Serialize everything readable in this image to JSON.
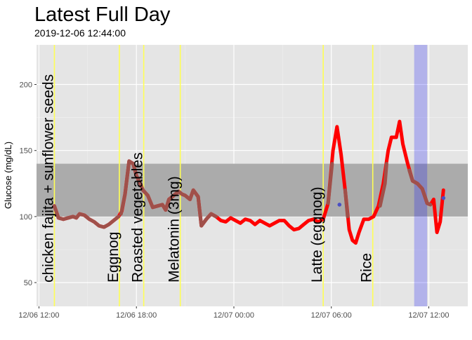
{
  "chart_data": {
    "type": "line",
    "title": "Latest Full Day",
    "subtitle": "2019-12-06 12:44:00",
    "xlabel": "",
    "ylabel": "Glucose (mg/dL)",
    "x_ticks": [
      "12/06 12:00",
      "12/06 18:00",
      "12/07 00:00",
      "12/07 06:00",
      "12/07 12:00"
    ],
    "x_tick_hours": [
      12,
      18,
      24,
      30,
      36
    ],
    "xlim_hours": [
      11.85,
      38.4
    ],
    "y_ticks": [
      50,
      100,
      150,
      200
    ],
    "ylim": [
      32,
      230
    ],
    "grid": true,
    "target_range": [
      100,
      140
    ],
    "highlight_window_hours": [
      35.1,
      35.9
    ],
    "annotations": [
      {
        "label": "chicken fajita + sunflower seeds",
        "hour": 12.95
      },
      {
        "label": "Eggnog",
        "hour": 16.95
      },
      {
        "label": "Roasted vegetables",
        "hour": 18.45
      },
      {
        "label": "Melatonin (3mg)",
        "hour": 20.7
      },
      {
        "label": "Latte (eggnog)",
        "hour": 29.5
      },
      {
        "label": "Rice",
        "hour": 32.55
      }
    ],
    "series": [
      {
        "color": "#ff0000",
        "points": [
          [
            12.95,
            108
          ],
          [
            13.2,
            99
          ],
          [
            13.5,
            98
          ],
          [
            13.8,
            99
          ],
          [
            14.1,
            100
          ],
          [
            14.3,
            99
          ],
          [
            14.5,
            102
          ],
          [
            14.8,
            101
          ],
          [
            15.1,
            98
          ],
          [
            15.4,
            96
          ],
          [
            15.7,
            93
          ],
          [
            16.0,
            92
          ],
          [
            16.3,
            94
          ],
          [
            16.6,
            97
          ],
          [
            16.9,
            100
          ],
          [
            17.1,
            104
          ],
          [
            17.3,
            117
          ],
          [
            17.55,
            142
          ],
          [
            17.8,
            140
          ],
          [
            18.0,
            131
          ],
          [
            18.2,
            126
          ],
          [
            18.4,
            120
          ],
          [
            18.7,
            116
          ],
          [
            19.0,
            107
          ],
          [
            19.3,
            108
          ],
          [
            19.6,
            109
          ],
          [
            19.8,
            105
          ],
          [
            20.0,
            113
          ],
          [
            20.3,
            116
          ],
          [
            20.6,
            119
          ],
          [
            20.8,
            117
          ],
          [
            21.0,
            116
          ],
          [
            21.3,
            113
          ],
          [
            21.5,
            120
          ],
          [
            21.8,
            115
          ],
          [
            22.0,
            93
          ],
          [
            22.3,
            98
          ],
          [
            22.6,
            102
          ],
          [
            22.9,
            100
          ],
          [
            23.2,
            97
          ],
          [
            23.5,
            96
          ],
          [
            23.8,
            99
          ],
          [
            24.1,
            97
          ],
          [
            24.4,
            95
          ],
          [
            24.7,
            98
          ],
          [
            25.0,
            97
          ],
          [
            25.3,
            94
          ],
          [
            25.6,
            97
          ],
          [
            25.9,
            95
          ],
          [
            26.2,
            93
          ],
          [
            26.5,
            95
          ],
          [
            26.8,
            97
          ],
          [
            27.1,
            97
          ],
          [
            27.4,
            93
          ],
          [
            27.7,
            90
          ],
          [
            28.0,
            91
          ],
          [
            28.3,
            94
          ],
          [
            28.6,
            97
          ],
          [
            28.9,
            98
          ],
          [
            29.2,
            96
          ],
          [
            29.5,
            98
          ],
          [
            29.8,
            110
          ],
          [
            30.1,
            150
          ],
          [
            30.35,
            168
          ],
          [
            30.6,
            147
          ],
          [
            30.85,
            120
          ],
          [
            31.1,
            90
          ],
          [
            31.3,
            82
          ],
          [
            31.5,
            80
          ],
          [
            31.7,
            88
          ],
          [
            32.0,
            98
          ],
          [
            32.3,
            98
          ],
          [
            32.6,
            100
          ],
          [
            32.9,
            108
          ],
          [
            33.2,
            125
          ],
          [
            33.5,
            150
          ],
          [
            33.7,
            160
          ],
          [
            34.0,
            160
          ],
          [
            34.2,
            172
          ],
          [
            34.4,
            155
          ],
          [
            34.7,
            140
          ],
          [
            35.0,
            127
          ],
          [
            35.3,
            125
          ],
          [
            35.6,
            121
          ],
          [
            35.9,
            110
          ],
          [
            36.1,
            109
          ],
          [
            36.3,
            113
          ],
          [
            36.5,
            88
          ],
          [
            36.7,
            96
          ],
          [
            36.9,
            120
          ]
        ]
      }
    ],
    "overlay_series": [
      {
        "color": "#a0504a",
        "segments": [
          [
            [
              12.95,
              108
            ],
            [
              13.2,
              99
            ],
            [
              13.5,
              98
            ],
            [
              13.8,
              99
            ],
            [
              14.1,
              100
            ],
            [
              14.3,
              99
            ],
            [
              14.5,
              102
            ],
            [
              14.8,
              101
            ],
            [
              15.1,
              98
            ],
            [
              15.4,
              96
            ],
            [
              15.7,
              93
            ],
            [
              16.0,
              92
            ],
            [
              16.3,
              94
            ],
            [
              16.6,
              97
            ],
            [
              16.9,
              100
            ]
          ],
          [
            [
              17.05,
              102
            ],
            [
              17.3,
              117
            ],
            [
              17.55,
              142
            ],
            [
              17.8,
              140
            ],
            [
              18.0,
              131
            ],
            [
              18.2,
              126
            ],
            [
              18.4,
              120
            ],
            [
              18.7,
              116
            ],
            [
              19.0,
              107
            ],
            [
              19.3,
              108
            ],
            [
              19.6,
              109
            ],
            [
              19.8,
              105
            ],
            [
              20.0,
              113
            ],
            [
              20.3,
              116
            ],
            [
              20.6,
              119
            ],
            [
              20.8,
              117
            ],
            [
              21.0,
              116
            ],
            [
              21.3,
              113
            ],
            [
              21.5,
              120
            ],
            [
              21.8,
              115
            ],
            [
              22.0,
              93
            ],
            [
              22.3,
              98
            ],
            [
              22.6,
              102
            ],
            [
              22.9,
              100
            ]
          ],
          [
            [
              29.8,
              110
            ],
            [
              30.05,
              140
            ]
          ],
          [
            [
              30.85,
              120
            ],
            [
              31.0,
              100
            ]
          ],
          [
            [
              33.0,
              108
            ],
            [
              33.3,
              125
            ],
            [
              33.4,
              140
            ]
          ],
          [
            [
              34.8,
              135
            ],
            [
              35.0,
              127
            ],
            [
              35.3,
              125
            ],
            [
              35.6,
              121
            ],
            [
              35.9,
              110
            ],
            [
              36.1,
              109
            ]
          ]
        ]
      }
    ],
    "points": [
      {
        "hour": 30.5,
        "value": 109,
        "color": "#4a4fc4"
      },
      {
        "hour": 36.9,
        "value": 114,
        "color": "#4a4fc4"
      }
    ]
  }
}
